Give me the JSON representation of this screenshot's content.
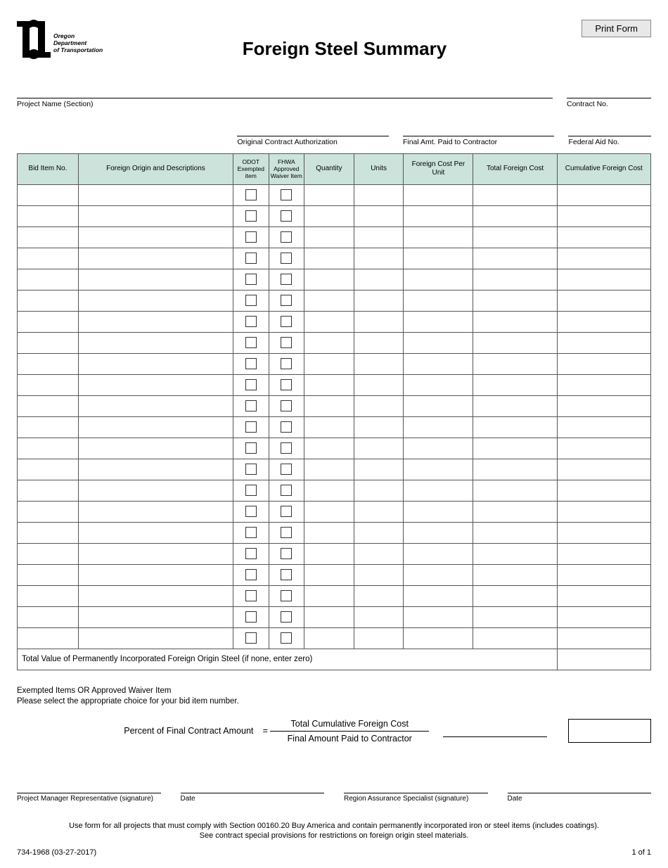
{
  "print_button": "Print Form",
  "logo": {
    "org_line1": "Oregon",
    "org_line2": "Department",
    "org_line3": "of Transportation"
  },
  "title": "Foreign Steel Summary",
  "fields": {
    "project_name": "Project Name (Section)",
    "contract_no": "Contract No.",
    "original_contract_auth": "Original Contract Authorization",
    "final_amt_paid": "Final Amt. Paid to Contractor",
    "federal_aid_no": "Federal Aid No."
  },
  "table": {
    "columns": [
      "Bid Item No.",
      "Foreign Origin and Descriptions",
      "ODOT Exempted item",
      "FHWA Approved Waiver Item",
      "Quantity",
      "Units",
      "Foreign Cost Per Unit",
      "Total Foreign Cost",
      "Cumulative Foreign Cost"
    ],
    "row_count": 22,
    "total_label": "Total Value of Permanently Incorporated Foreign Origin Steel (if none, enter zero)",
    "header_bg": "#cce3dc",
    "border_color": "#555555"
  },
  "notes": {
    "line1": "Exempted Items OR Approved Waiver Item",
    "line2": "Please select the appropriate choice for your bid item number."
  },
  "calc": {
    "label": "Percent of Final Contract Amount",
    "equals": "=",
    "numerator": "Total Cumulative Foreign Cost",
    "denominator": "Final Amount Paid to Contractor"
  },
  "signatures": {
    "pm": "Project Manager Representative (signature)",
    "pm_date": "Date",
    "ras": "Region Assurance Specialist (signature)",
    "ras_date": "Date"
  },
  "footnote": {
    "line1": "Use form for all projects that must comply with Section 00160.20 Buy America and contain permanently incorporated iron or steel items (includes coatings).",
    "line2": "See contract special provisions for restrictions on foreign origin steel materials."
  },
  "bottom": {
    "form_no": "734-1968 (03-27-2017)",
    "page": "1 of 1"
  }
}
